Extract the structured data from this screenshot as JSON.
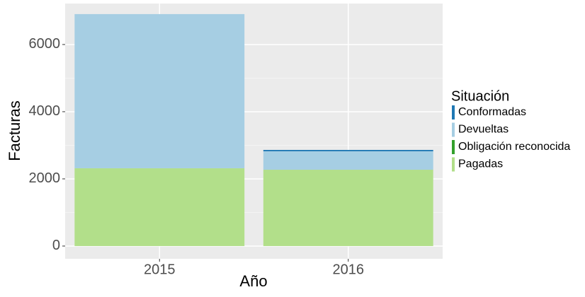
{
  "chart_data": {
    "type": "bar",
    "stacked": true,
    "xlabel": "Año",
    "ylabel": "Facturas",
    "legend_title": "Situación",
    "legend": "right",
    "grid": true,
    "categories": [
      "2015",
      "2016"
    ],
    "series": [
      {
        "name": "Conformadas",
        "color": "#1f78b4",
        "values": [
          0,
          40
        ]
      },
      {
        "name": "Devueltas",
        "color": "#a6cee3",
        "values": [
          4590,
          550
        ]
      },
      {
        "name": "Obligación reconocida",
        "color": "#33a02c",
        "values": [
          0,
          0
        ]
      },
      {
        "name": "Pagadas",
        "color": "#b2df8a",
        "values": [
          2316,
          2272
        ]
      }
    ],
    "ylim": [
      -380,
      7220
    ],
    "yticks": [
      0,
      2000,
      4000,
      6000
    ]
  }
}
